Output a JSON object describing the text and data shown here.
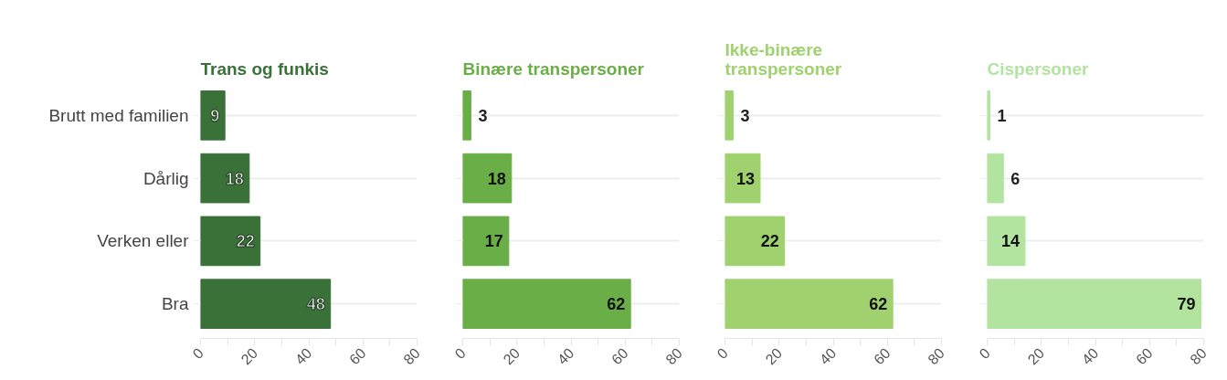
{
  "chart_data": [
    {
      "type": "bar",
      "orientation": "horizontal",
      "title": "Trans og funkis",
      "categories": [
        "Brutt med familien",
        "Dårlig",
        "Verken eller",
        "Bra"
      ],
      "values": [
        9,
        18,
        22,
        48
      ],
      "color": "#3a7139",
      "xlim": [
        0,
        80
      ],
      "xticks": [
        0,
        {
          "value": 10,
          "label": null
        },
        20,
        {
          "value": 30,
          "label": null
        },
        40,
        {
          "value": 50,
          "label": null
        },
        60,
        {
          "value": 70,
          "label": null
        },
        80
      ],
      "grid": "y",
      "data_labels": true
    },
    {
      "type": "bar",
      "orientation": "horizontal",
      "title": "Binære transpersoner",
      "categories": [
        "Brutt med familien",
        "Dårlig",
        "Verken eller",
        "Bra"
      ],
      "values": [
        3,
        18,
        17,
        62
      ],
      "color": "#6aae48",
      "xlim": [
        0,
        80
      ],
      "xticks": [
        0,
        {
          "value": 10,
          "label": null
        },
        20,
        {
          "value": 30,
          "label": null
        },
        40,
        {
          "value": 50,
          "label": null
        },
        60,
        {
          "value": 70,
          "label": null
        },
        80
      ],
      "grid": "y",
      "data_labels": true,
      "tick_labels": "x"
    },
    {
      "type": "bar",
      "orientation": "horizontal",
      "title": "Ikke-binære transpersoner",
      "categories": [
        "Brutt med familien",
        "Dårlig",
        "Verken eller",
        "Bra"
      ],
      "values": [
        3,
        13,
        22,
        62
      ],
      "color": "#9fd26e",
      "xlim": [
        0,
        80
      ],
      "xticks": [
        0,
        {
          "value": 10,
          "label": null
        },
        20,
        {
          "value": 30,
          "label": null
        },
        40,
        {
          "value": 50,
          "label": null
        },
        60,
        {
          "value": 70,
          "label": null
        },
        80
      ],
      "grid": "y",
      "data_labels": true,
      "tick_labels": "x"
    },
    {
      "type": "bar",
      "orientation": "horizontal",
      "title": "Cispersoner",
      "categories": [
        "Brutt med familien",
        "Dårlig",
        "Verken eller",
        "Bra"
      ],
      "values": [
        1,
        6,
        14,
        79
      ],
      "color": "#b2e4a0",
      "xlim": [
        0,
        80
      ],
      "xticks": [
        0,
        {
          "value": 10,
          "label": null
        },
        20,
        {
          "value": 30,
          "label": null
        },
        40,
        {
          "value": 50,
          "label": null
        },
        60,
        {
          "value": 70,
          "label": null
        },
        80
      ],
      "grid": "y",
      "data_labels": true,
      "tick_labels": "x"
    }
  ]
}
